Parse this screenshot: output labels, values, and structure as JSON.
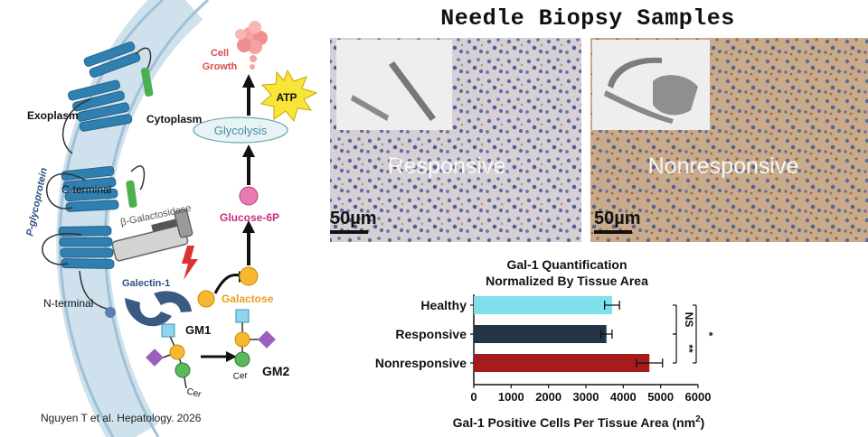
{
  "pathway": {
    "labels": {
      "exoplasm": "Exoplasm",
      "cytoplasm": "Cytoplasm",
      "c_terminal": "C-terminal",
      "n_terminal": "N-terminal",
      "p_glycoprotein": "P-glycoprotein",
      "beta_galactosidase": "β-Galactosidase",
      "galectin": "Galectin-1",
      "cell_growth_line1": "Cell",
      "cell_growth_line2": "Growth",
      "atp": "ATP",
      "glycolysis": "Glycolysis",
      "glucose6p": "Glucose-6P",
      "galactose": "Galactose",
      "gm1": "GM1",
      "gm2": "GM2",
      "cer_left": "Cer",
      "cer_right": "Cer"
    },
    "colors": {
      "membrane": "#c9dde9",
      "helix": "#2f7fb0",
      "green_segment": "#4caf50",
      "galectin": "#3b5a82",
      "galactose": "#f5b82e",
      "glucose6p": "#e879b2",
      "glycolysis_fill": "#e8f3f6",
      "atp_burst": "#f7e53a",
      "cell_growth_red": "#d94c4c",
      "square_blue": "#8fd4f0",
      "diamond_purple": "#9b5fc0",
      "green_circle": "#5cb85c"
    }
  },
  "citation": "Nguyen T et al. Hepatology. 2026",
  "biopsy": {
    "title": "Needle Biopsy Samples",
    "responsive_label": "Responsive",
    "nonresponsive_label": "Nonresponsive",
    "scale_left": "50µm",
    "scale_right": "50µm"
  },
  "chart_data": {
    "type": "bar",
    "orientation": "horizontal",
    "title": "Gal-1 Quantification\nNormalized By Tissue Area",
    "title_line1": "Gal-1 Quantification",
    "title_line2": "Normalized By Tissue Area",
    "xlabel": "Gal-1 Positive Cells Per Tissue Area (nm²)",
    "xlabel_main": "Gal-1 Positive Cells Per Tissue Area (nm",
    "xlabel_sup": "2",
    "xlabel_close": ")",
    "categories": [
      "Healthy",
      "Responsive",
      "Nonresponsive"
    ],
    "values": [
      3700,
      3550,
      4700
    ],
    "errors": [
      200,
      150,
      350
    ],
    "colors": [
      "#7ee0ea",
      "#243447",
      "#a61b1b"
    ],
    "xlim": [
      0,
      6000
    ],
    "xticks": [
      0,
      1000,
      2000,
      3000,
      4000,
      5000,
      6000
    ],
    "significance": [
      {
        "between": [
          "Healthy",
          "Responsive"
        ],
        "label": "NS"
      },
      {
        "between": [
          "Responsive",
          "Nonresponsive"
        ],
        "label": "**"
      },
      {
        "between": [
          "Healthy",
          "Nonresponsive"
        ],
        "label": "*"
      }
    ]
  }
}
